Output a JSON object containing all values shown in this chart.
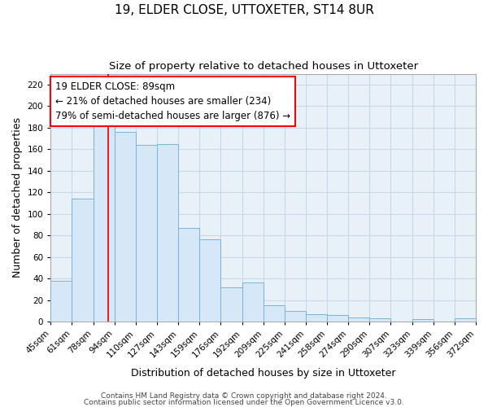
{
  "title": "19, ELDER CLOSE, UTTOXETER, ST14 8UR",
  "subtitle": "Size of property relative to detached houses in Uttoxeter",
  "xlabel": "Distribution of detached houses by size in Uttoxeter",
  "ylabel": "Number of detached properties",
  "bar_values": [
    38,
    114,
    184,
    176,
    164,
    165,
    87,
    76,
    32,
    36,
    15,
    10,
    7,
    6,
    4,
    3,
    0,
    2,
    0,
    3
  ],
  "bar_labels": [
    "45sqm",
    "61sqm",
    "78sqm",
    "94sqm",
    "110sqm",
    "127sqm",
    "143sqm",
    "159sqm",
    "176sqm",
    "192sqm",
    "209sqm",
    "225sqm",
    "241sqm",
    "258sqm",
    "274sqm",
    "290sqm",
    "307sqm",
    "323sqm",
    "339sqm",
    "356sqm",
    "372sqm"
  ],
  "bar_color": "#d6e8f7",
  "bar_edge_color": "#7ab3d9",
  "bar_edge_width": 0.7,
  "red_line_x": 2.73,
  "ylim": [
    0,
    230
  ],
  "yticks": [
    0,
    20,
    40,
    60,
    80,
    100,
    120,
    140,
    160,
    180,
    200,
    220
  ],
  "annotation_text": "19 ELDER CLOSE: 89sqm\n← 21% of detached houses are smaller (234)\n79% of semi-detached houses are larger (876) →",
  "footnote1": "Contains HM Land Registry data © Crown copyright and database right 2024.",
  "footnote2": "Contains public sector information licensed under the Open Government Licence v3.0.",
  "background_color": "#ffffff",
  "plot_bg_color": "#e8f0f8",
  "grid_color": "#c8d8e8",
  "title_fontsize": 11,
  "subtitle_fontsize": 9.5,
  "axis_label_fontsize": 9,
  "tick_fontsize": 7.5,
  "annotation_fontsize": 8.5,
  "footnote_fontsize": 6.5
}
